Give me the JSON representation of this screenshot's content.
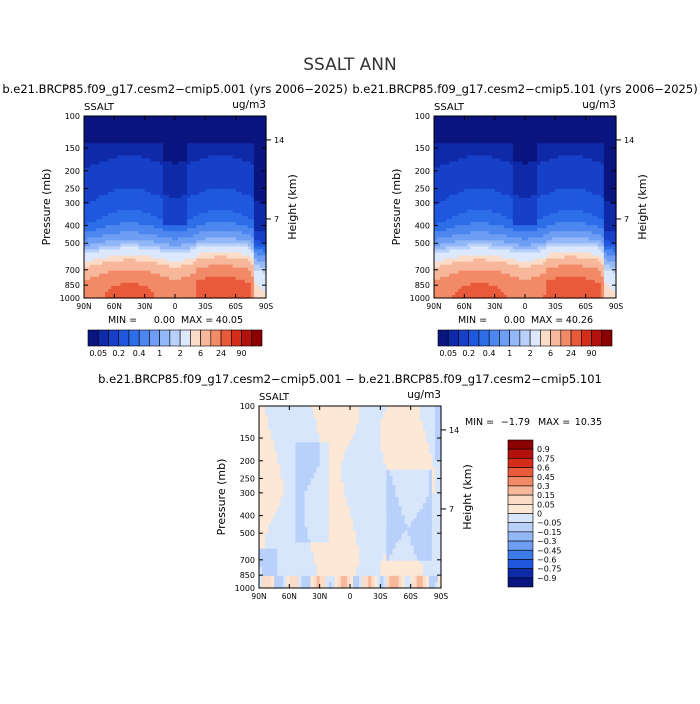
{
  "figure": {
    "title": "SSALT ANN",
    "diff_title": "b.e21.BRCP85.f09_g17.cesm2−cmip5.001 − b.e21.BRCP85.f09_g17.cesm2−cmip5.101"
  },
  "chart_data": [
    {
      "type": "heatmap",
      "panel": "left",
      "title": "b.e21.BRCP85.f09_g17.cesm2−cmip5.001 (yrs 2006−2025)",
      "variable_label": "SSALT",
      "units_label": "ug/m3",
      "ylabel": "Pressure (mb)",
      "y2label": "Height (km)",
      "x_ticks": [
        "90N",
        "60N",
        "30N",
        "0",
        "30S",
        "60S",
        "90S"
      ],
      "y_ticks": [
        "100",
        "150",
        "200",
        "250",
        "300",
        "400",
        "500",
        "700",
        "850",
        "1000"
      ],
      "y2_ticks": [
        "14",
        "7"
      ],
      "ylim": [
        1000,
        100
      ],
      "xlim": [
        90,
        -90
      ],
      "min_label": "MIN =",
      "min_value": "0.00",
      "max_label": "MAX =",
      "max_value": "40.05",
      "colorbar_labels": [
        "0.05",
        "0.2",
        "0.4",
        "1",
        "2",
        "6",
        "24",
        "90"
      ],
      "levels": [
        0.05,
        0.1,
        0.2,
        0.3,
        0.4,
        0.6,
        1,
        1.5,
        2,
        4,
        6,
        12,
        24,
        48,
        90
      ],
      "surface_peak": 40.05
    },
    {
      "type": "heatmap",
      "panel": "right",
      "title": "b.e21.BRCP85.f09_g17.cesm2−cmip5.101 (yrs 2006−2025)",
      "variable_label": "SSALT",
      "units_label": "ug/m3",
      "ylabel": "Pressure (mb)",
      "y2label": "Height (km)",
      "x_ticks": [
        "90N",
        "60N",
        "30N",
        "0",
        "30S",
        "60S",
        "90S"
      ],
      "y_ticks": [
        "100",
        "150",
        "200",
        "250",
        "300",
        "400",
        "500",
        "700",
        "850",
        "1000"
      ],
      "y2_ticks": [
        "14",
        "7"
      ],
      "ylim": [
        1000,
        100
      ],
      "xlim": [
        90,
        -90
      ],
      "min_label": "MIN =",
      "min_value": "0.00",
      "max_label": "MAX =",
      "max_value": "40.26",
      "colorbar_labels": [
        "0.05",
        "0.2",
        "0.4",
        "1",
        "2",
        "6",
        "24",
        "90"
      ],
      "levels": [
        0.05,
        0.1,
        0.2,
        0.3,
        0.4,
        0.6,
        1,
        1.5,
        2,
        4,
        6,
        12,
        24,
        48,
        90
      ],
      "surface_peak": 40.26
    },
    {
      "type": "heatmap",
      "panel": "difference",
      "variable_label": "SSALT",
      "units_label": "ug/m3",
      "ylabel": "Pressure (mb)",
      "y2label": "Height (km)",
      "x_ticks": [
        "90N",
        "60N",
        "30N",
        "0",
        "30S",
        "60S",
        "90S"
      ],
      "y_ticks": [
        "100",
        "150",
        "200",
        "250",
        "300",
        "400",
        "500",
        "700",
        "850",
        "1000"
      ],
      "y2_ticks": [
        "14",
        "7"
      ],
      "ylim": [
        1000,
        100
      ],
      "xlim": [
        90,
        -90
      ],
      "min_label": "MIN =",
      "min_value": "−1.79",
      "max_label": "MAX =",
      "max_value": "10.35",
      "colorbar_labels": [
        "0.9",
        "0.75",
        "0.6",
        "0.45",
        "0.3",
        "0.15",
        "0.05",
        "0",
        "−0.05",
        "−0.15",
        "−0.3",
        "−0.45",
        "−0.6",
        "−0.75",
        "−0.9"
      ],
      "levels": [
        -0.9,
        -0.75,
        -0.6,
        -0.45,
        -0.3,
        -0.15,
        -0.05,
        0,
        0.05,
        0.15,
        0.3,
        0.45,
        0.6,
        0.75,
        0.9
      ]
    }
  ],
  "colors": {
    "seq_palette": [
      "#0a1580",
      "#0f2aa8",
      "#1640c8",
      "#1f58de",
      "#2d6ee8",
      "#4d86ef",
      "#6e9ef3",
      "#93b8f7",
      "#b9d1fa",
      "#dbe8fd",
      "#fbdcc8",
      "#f7b79a",
      "#f28a68",
      "#e85a3a",
      "#d42e1a",
      "#b3120c",
      "#8b0000"
    ],
    "div_palette": [
      "#8b0000",
      "#b3120c",
      "#d42e1a",
      "#e85a3a",
      "#f28a68",
      "#f7b79a",
      "#fbdcc8",
      "#fde8d6",
      "#d7e6fb",
      "#b9d1fa",
      "#93b8f7",
      "#6e9ef3",
      "#3d7be8",
      "#1f58de",
      "#0f2aa8",
      "#0a1580"
    ]
  }
}
